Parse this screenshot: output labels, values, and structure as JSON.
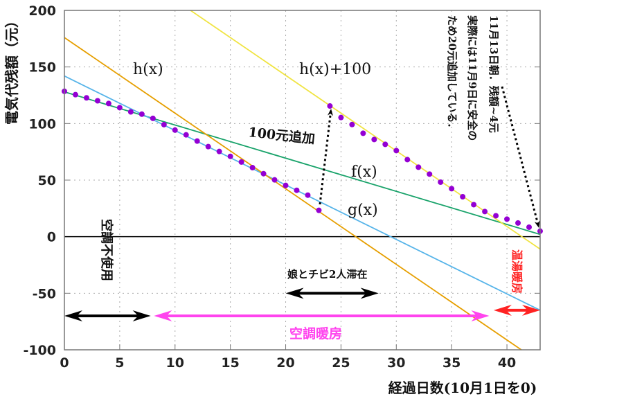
{
  "chart_data": {
    "type": "line",
    "xlabel": "経過日数(10月1日を0)",
    "ylabel": "電気代残額（元）",
    "xlim": [
      0,
      43
    ],
    "ylim": [
      -100,
      200
    ],
    "xticks": [
      0,
      5,
      10,
      15,
      20,
      25,
      30,
      35,
      40
    ],
    "yticks": [
      -100,
      -50,
      0,
      50,
      100,
      150,
      200
    ],
    "grid": true,
    "points": {
      "color": "#9400d3",
      "x": [
        0,
        1,
        2,
        3,
        4,
        5,
        6,
        7,
        8,
        9,
        10,
        11,
        12,
        13,
        14,
        15,
        16,
        17,
        18,
        19,
        20,
        21,
        22,
        23,
        24,
        25,
        26,
        27,
        28,
        29,
        30,
        31,
        32,
        33,
        34,
        35,
        36,
        37,
        38,
        39,
        40,
        41,
        42,
        43
      ],
      "y": [
        128.5,
        125.5,
        122.7,
        120.1,
        117.7,
        114,
        110.3,
        108.3,
        104.6,
        99,
        94.2,
        90,
        84.5,
        79.6,
        75.3,
        71,
        66,
        61,
        55.7,
        50.2,
        45.3,
        41,
        36.7,
        23.3,
        115.5,
        105.3,
        99.1,
        91.4,
        85.9,
        81.6,
        76.1,
        68.1,
        61.4,
        55.3,
        48.2,
        42.4,
        35.3,
        28.3,
        22.2,
        18.5,
        15.5,
        12.1,
        8.4,
        4.9
      ]
    },
    "series": [
      {
        "name": "f(x)",
        "color": "#1aa36b",
        "x": [
          0,
          43
        ],
        "y": [
          128,
          2
        ]
      },
      {
        "name": "g(x)",
        "color": "#56b4e9",
        "x": [
          0,
          43
        ],
        "y": [
          142,
          -65
        ]
      },
      {
        "name": "h(x)",
        "color": "#e69f00",
        "x": [
          0,
          41.3
        ],
        "y": [
          176,
          -100
        ]
      },
      {
        "name": "h(x)+100",
        "color": "#f0e442",
        "x": [
          11.4,
          43
        ],
        "y": [
          200,
          -11
        ]
      }
    ],
    "zero_line": 0,
    "annotations": {
      "add100": "100元追加",
      "daughter_stay": "娘とチビ2人滞在",
      "no_ac": "空調不使用",
      "ac_heating": "空調暖房",
      "water_heating": "温湯暖房",
      "note_line1": "11月13日朝．残額~4元",
      "note_line2": "実際には11月9日に安全の",
      "note_line3": "ため20元追加している．"
    },
    "ranges": [
      {
        "from": 0,
        "to": 7.8,
        "y": -70,
        "color": "#000000"
      },
      {
        "from": 8.1,
        "to": 38.4,
        "y": -70,
        "color": "#ff44ee"
      },
      {
        "from": 38.8,
        "to": 43,
        "y": -65,
        "color": "#ff2222"
      },
      {
        "from": 20,
        "to": 28.4,
        "y": -50,
        "color": "#000000"
      }
    ]
  }
}
